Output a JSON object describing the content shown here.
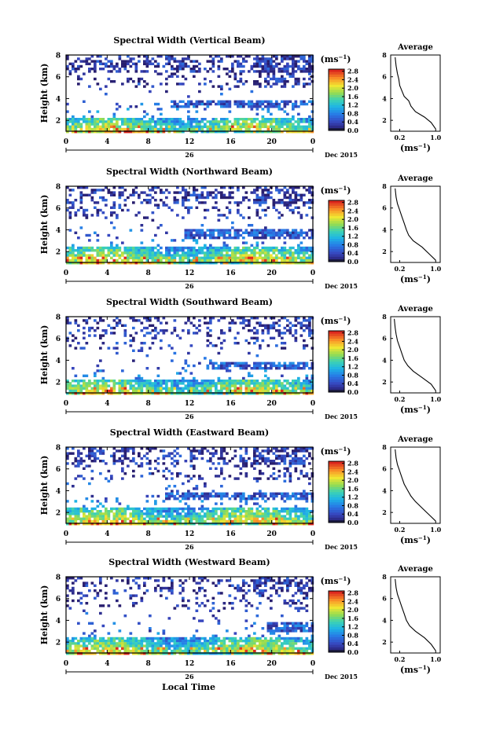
{
  "figure": {
    "xlabel": "Local Time",
    "date_label": "Dec 2015",
    "day_label": "26",
    "colorbar_unit": "(ms",
    "colorbar_unit_exp": "−1",
    "colorbar_unit_close": ")",
    "avg_title": "Average",
    "avg_unit": "(ms",
    "avg_unit_exp": "−1",
    "avg_unit_close": ")"
  },
  "chart_data": [
    {
      "type": "heatmap",
      "title": "Spectral Width (Vertical Beam)",
      "ylabel": "Height (km)",
      "x_ticks": [
        "0",
        "4",
        "8",
        "12",
        "16",
        "20",
        "0"
      ],
      "y_ticks": [
        "2",
        "4",
        "6",
        "8"
      ],
      "xlim": [
        0,
        24
      ],
      "ylim": [
        1,
        8
      ],
      "colorbar_ticks": [
        "0.0",
        "0.4",
        "0.8",
        "1.2",
        "1.6",
        "2.0",
        "2.4",
        "2.8"
      ],
      "colorbar_range": [
        0,
        2.9
      ],
      "profile_ticks_x": [
        "0.2",
        "1.0"
      ],
      "profile_ticks_y": [
        "2",
        "4",
        "6",
        "8"
      ],
      "profile": {
        "x": [
          1.0,
          0.9,
          0.75,
          0.55,
          0.45,
          0.4,
          0.3,
          0.25,
          0.2,
          0.18,
          0.15,
          0.12,
          0.1
        ],
        "y": [
          1.2,
          1.8,
          2.3,
          2.8,
          3.3,
          3.8,
          4.2,
          4.7,
          5.2,
          5.8,
          6.3,
          7.0,
          7.8
        ]
      }
    },
    {
      "type": "heatmap",
      "title": "Spectral Width (Northward Beam)",
      "ylabel": "Height (km)",
      "x_ticks": [
        "0",
        "4",
        "8",
        "12",
        "16",
        "20",
        "0"
      ],
      "y_ticks": [
        "2",
        "4",
        "6",
        "8"
      ],
      "xlim": [
        0,
        24
      ],
      "ylim": [
        1,
        8
      ],
      "colorbar_ticks": [
        "0.0",
        "0.4",
        "0.8",
        "1.2",
        "1.6",
        "2.0",
        "2.4",
        "2.8"
      ],
      "colorbar_range": [
        0,
        2.9
      ],
      "profile_ticks_x": [
        "0.2",
        "1.0"
      ],
      "profile_ticks_y": [
        "2",
        "4",
        "6",
        "8"
      ],
      "profile": {
        "x": [
          1.0,
          0.85,
          0.7,
          0.5,
          0.4,
          0.35,
          0.3,
          0.25,
          0.2,
          0.15,
          0.12,
          0.1
        ],
        "y": [
          1.2,
          1.8,
          2.4,
          3.0,
          3.5,
          4.0,
          4.6,
          5.2,
          5.8,
          6.4,
          7.0,
          7.8
        ]
      }
    },
    {
      "type": "heatmap",
      "title": "Spectral Width (Southward Beam)",
      "ylabel": "Height (km)",
      "x_ticks": [
        "0",
        "4",
        "8",
        "12",
        "16",
        "20",
        "0"
      ],
      "y_ticks": [
        "2",
        "4",
        "6",
        "8"
      ],
      "xlim": [
        0,
        24
      ],
      "ylim": [
        1,
        8
      ],
      "colorbar_ticks": [
        "0.0",
        "0.4",
        "0.8",
        "1.2",
        "1.6",
        "2.0",
        "2.4",
        "2.8"
      ],
      "colorbar_range": [
        0,
        2.9
      ],
      "profile_ticks_x": [
        "0.2",
        "1.0"
      ],
      "profile_ticks_y": [
        "2",
        "4",
        "6",
        "8"
      ],
      "profile": {
        "x": [
          1.0,
          0.9,
          0.7,
          0.5,
          0.38,
          0.3,
          0.25,
          0.2,
          0.15,
          0.12,
          0.1,
          0.08
        ],
        "y": [
          1.2,
          1.8,
          2.4,
          3.0,
          3.5,
          4.0,
          4.6,
          5.2,
          5.8,
          6.4,
          7.0,
          7.8
        ]
      }
    },
    {
      "type": "heatmap",
      "title": "Spectral Width (Eastward Beam)",
      "ylabel": "Height (km)",
      "x_ticks": [
        "0",
        "4",
        "8",
        "12",
        "16",
        "20",
        "0"
      ],
      "y_ticks": [
        "2",
        "4",
        "6",
        "8"
      ],
      "xlim": [
        0,
        24
      ],
      "ylim": [
        1,
        8
      ],
      "colorbar_ticks": [
        "0.0",
        "0.4",
        "0.8",
        "1.2",
        "1.6",
        "2.0",
        "2.4",
        "2.8"
      ],
      "colorbar_range": [
        0,
        2.9
      ],
      "profile_ticks_x": [
        "0.2",
        "1.0"
      ],
      "profile_ticks_y": [
        "2",
        "4",
        "6",
        "8"
      ],
      "profile": {
        "x": [
          1.0,
          0.85,
          0.7,
          0.55,
          0.45,
          0.38,
          0.3,
          0.25,
          0.2,
          0.15,
          0.12,
          0.1
        ],
        "y": [
          1.2,
          1.8,
          2.4,
          3.0,
          3.5,
          4.0,
          4.6,
          5.2,
          5.8,
          6.4,
          7.0,
          7.8
        ]
      }
    },
    {
      "type": "heatmap",
      "title": "Spectral Width (Westward Beam)",
      "ylabel": "Height (km)",
      "x_ticks": [
        "0",
        "4",
        "8",
        "12",
        "16",
        "20",
        "0"
      ],
      "y_ticks": [
        "2",
        "4",
        "6",
        "8"
      ],
      "xlim": [
        0,
        24
      ],
      "ylim": [
        1,
        8
      ],
      "colorbar_ticks": [
        "0.0",
        "0.4",
        "0.8",
        "1.2",
        "1.6",
        "2.0",
        "2.4",
        "2.8"
      ],
      "colorbar_range": [
        0,
        2.9
      ],
      "profile_ticks_x": [
        "0.2",
        "1.0"
      ],
      "profile_ticks_y": [
        "2",
        "4",
        "6",
        "8"
      ],
      "profile": {
        "x": [
          1.0,
          0.9,
          0.75,
          0.55,
          0.42,
          0.35,
          0.3,
          0.25,
          0.2,
          0.15,
          0.12,
          0.1
        ],
        "y": [
          1.2,
          1.8,
          2.4,
          3.0,
          3.5,
          4.0,
          4.6,
          5.2,
          5.8,
          6.4,
          7.0,
          7.8
        ]
      }
    }
  ]
}
